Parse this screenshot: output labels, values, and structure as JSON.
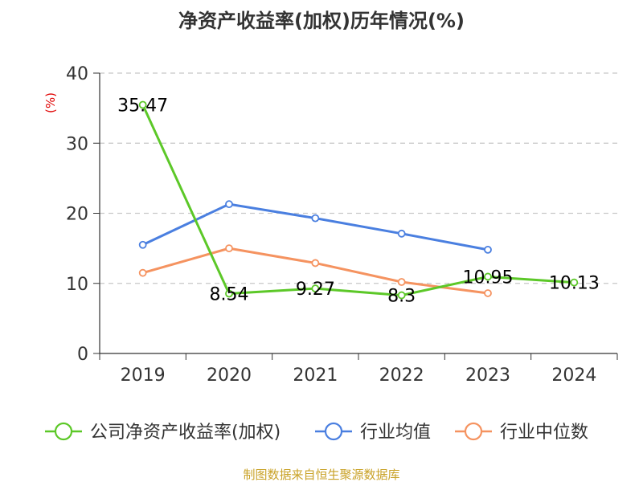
{
  "chart_data": {
    "type": "line",
    "title": "净资产收益率(加权)历年情况(%)",
    "ylabel": "(%)",
    "xlabel": "",
    "categories": [
      "2019",
      "2020",
      "2021",
      "2022",
      "2023",
      "2024"
    ],
    "ylim": [
      0,
      40
    ],
    "yticks": [
      "0",
      "10",
      "20",
      "30",
      "40"
    ],
    "grid": true,
    "legend_position": "bottom",
    "series": [
      {
        "name": "公司净资产收益率(加权)",
        "color": "#5cc828",
        "values": [
          35.47,
          8.54,
          9.27,
          8.3,
          10.95,
          10.13
        ],
        "labels": [
          "35.47",
          "8.54",
          "9.27",
          "8.3",
          "10.95",
          "10.13"
        ]
      },
      {
        "name": "行业均值",
        "color": "#4a7fe0",
        "values": [
          15.5,
          21.3,
          19.3,
          17.1,
          14.8,
          null
        ]
      },
      {
        "name": "行业中位数",
        "color": "#f59360",
        "values": [
          11.5,
          15.0,
          12.9,
          10.2,
          8.6,
          null
        ]
      }
    ],
    "source": "制图数据来自恒生聚源数据库"
  }
}
